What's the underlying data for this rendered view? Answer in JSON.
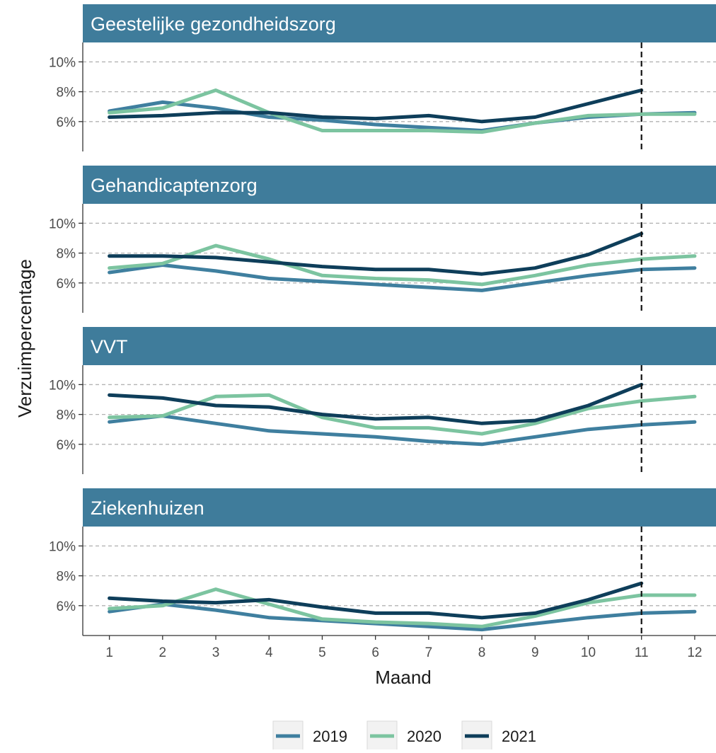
{
  "chart_data": {
    "type": "line",
    "ylabel": "Verzuimpercentage",
    "xlabel": "Maand",
    "x": [
      1,
      2,
      3,
      4,
      5,
      6,
      7,
      8,
      9,
      10,
      11,
      12
    ],
    "x_ticks": [
      "1",
      "2",
      "3",
      "4",
      "5",
      "6",
      "7",
      "8",
      "9",
      "10",
      "11",
      "12"
    ],
    "xlim": [
      0.5,
      12.4
    ],
    "ylim": [
      4.0,
      11.3
    ],
    "y_ticks": [
      6,
      8,
      10
    ],
    "y_tick_labels": [
      "6%",
      "8%",
      "10%"
    ],
    "grid": "dashed horizontal",
    "reference_line_x": 11,
    "legend_position": "bottom",
    "colors": {
      "2019": "#3f7f9f",
      "2020": "#7cc4a0",
      "2021": "#0e3e5a",
      "strip": "#3f7c9b",
      "grid": "#b3b3b3"
    },
    "legend": [
      "2019",
      "2020",
      "2021"
    ],
    "panels": [
      {
        "title": "Geestelijke gezondheidszorg",
        "series": [
          {
            "name": "2019",
            "values": [
              6.7,
              7.3,
              6.9,
              6.3,
              6.1,
              5.8,
              5.6,
              5.4,
              5.9,
              6.3,
              6.5,
              6.6
            ]
          },
          {
            "name": "2020",
            "values": [
              6.6,
              6.9,
              8.1,
              6.6,
              5.4,
              5.4,
              5.4,
              5.3,
              5.9,
              6.4,
              6.5,
              6.5
            ]
          },
          {
            "name": "2021",
            "values": [
              6.3,
              6.4,
              6.6,
              6.6,
              6.3,
              6.2,
              6.4,
              6.0,
              6.3,
              7.2,
              8.1
            ]
          }
        ]
      },
      {
        "title": "Gehandicaptenzorg",
        "series": [
          {
            "name": "2019",
            "values": [
              6.7,
              7.2,
              6.8,
              6.3,
              6.1,
              5.9,
              5.7,
              5.5,
              6.0,
              6.5,
              6.9,
              7.0
            ]
          },
          {
            "name": "2020",
            "values": [
              7.0,
              7.3,
              8.5,
              7.6,
              6.5,
              6.3,
              6.2,
              5.9,
              6.5,
              7.2,
              7.6,
              7.8
            ]
          },
          {
            "name": "2021",
            "values": [
              7.8,
              7.8,
              7.7,
              7.4,
              7.1,
              6.9,
              6.9,
              6.6,
              7.0,
              7.9,
              9.3
            ]
          }
        ]
      },
      {
        "title": "VVT",
        "series": [
          {
            "name": "2019",
            "values": [
              7.5,
              7.9,
              7.4,
              6.9,
              6.7,
              6.5,
              6.2,
              6.0,
              6.5,
              7.0,
              7.3,
              7.5
            ]
          },
          {
            "name": "2020",
            "values": [
              7.8,
              7.9,
              9.2,
              9.3,
              7.8,
              7.1,
              7.1,
              6.7,
              7.4,
              8.4,
              8.9,
              9.2
            ]
          },
          {
            "name": "2021",
            "values": [
              9.3,
              9.1,
              8.6,
              8.5,
              8.0,
              7.7,
              7.8,
              7.4,
              7.6,
              8.6,
              10.0
            ]
          }
        ]
      },
      {
        "title": "Ziekenhuizen",
        "series": [
          {
            "name": "2019",
            "values": [
              5.6,
              6.1,
              5.7,
              5.2,
              5.0,
              4.8,
              4.6,
              4.4,
              4.8,
              5.2,
              5.5,
              5.6
            ]
          },
          {
            "name": "2020",
            "values": [
              5.8,
              6.0,
              7.1,
              6.1,
              5.1,
              4.9,
              4.8,
              4.6,
              5.3,
              6.2,
              6.7,
              6.7
            ]
          },
          {
            "name": "2021",
            "values": [
              6.5,
              6.3,
              6.2,
              6.4,
              5.9,
              5.5,
              5.5,
              5.2,
              5.5,
              6.4,
              7.5
            ]
          }
        ]
      }
    ]
  }
}
